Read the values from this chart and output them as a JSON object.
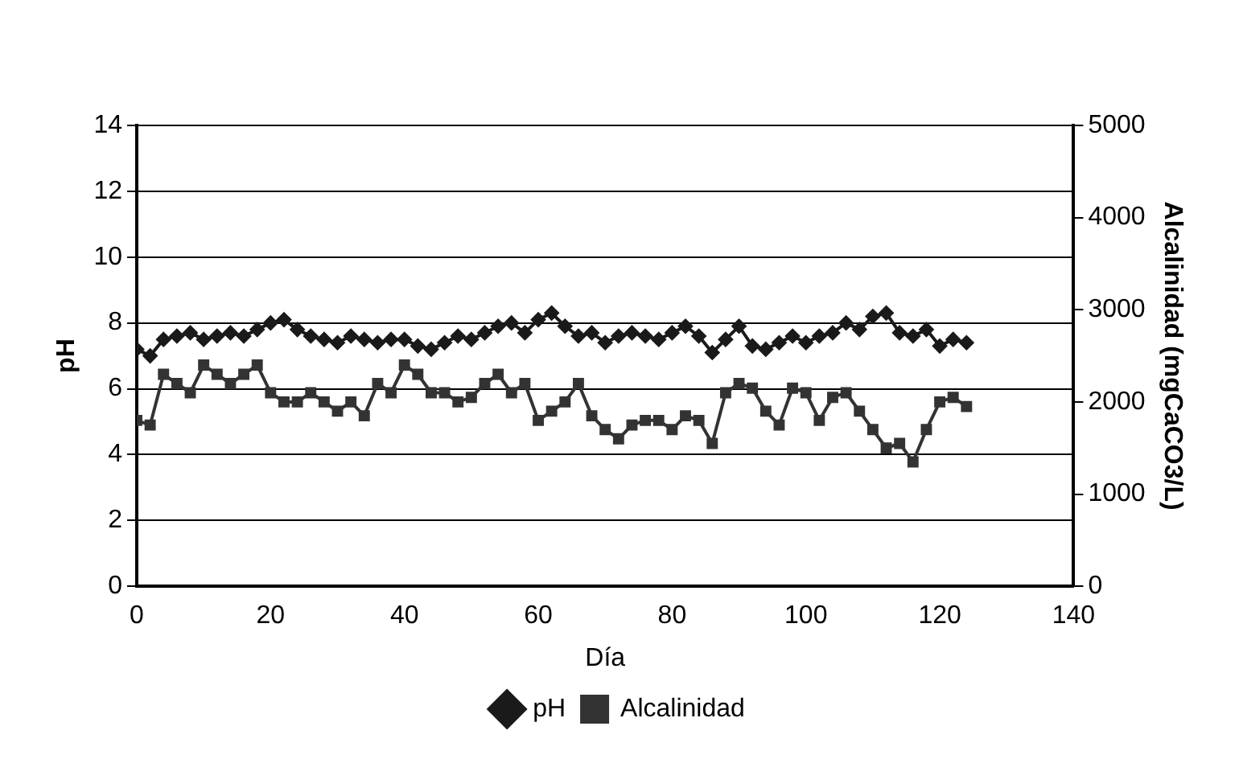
{
  "chart_data": {
    "type": "line",
    "xlabel": "Día",
    "ylabel": "pH",
    "y2label": "Alcalinidad (mgCaCO3/L)",
    "x": [
      0,
      2,
      4,
      6,
      8,
      10,
      12,
      14,
      16,
      18,
      20,
      22,
      24,
      26,
      28,
      30,
      32,
      34,
      36,
      38,
      40,
      42,
      44,
      46,
      48,
      50,
      52,
      54,
      56,
      58,
      60,
      62,
      64,
      66,
      68,
      70,
      72,
      74,
      76,
      78,
      80,
      82,
      84,
      86,
      88,
      90,
      92,
      94,
      96,
      98,
      100,
      102,
      104,
      106,
      108,
      110,
      112,
      114,
      116,
      118,
      120,
      122,
      124
    ],
    "series": [
      {
        "name": "pH",
        "color": "#1a1a1a",
        "marker": "diamond",
        "values": [
          7.2,
          7.0,
          7.5,
          7.6,
          7.7,
          7.5,
          7.6,
          7.7,
          7.6,
          7.8,
          8.0,
          8.1,
          7.8,
          7.6,
          7.5,
          7.4,
          7.6,
          7.5,
          7.4,
          7.5,
          7.5,
          7.3,
          7.2,
          7.4,
          7.6,
          7.5,
          7.7,
          7.9,
          8.0,
          7.7,
          8.1,
          8.3,
          7.9,
          7.6,
          7.7,
          7.4,
          7.6,
          7.7,
          7.6,
          7.5,
          7.7,
          7.9,
          7.6,
          7.1,
          7.5,
          7.9,
          7.3,
          7.2,
          7.4,
          7.6,
          7.4,
          7.6,
          7.7,
          8.0,
          7.8,
          8.2,
          8.3,
          7.7,
          7.6,
          7.8,
          7.3,
          7.5,
          7.4
        ]
      },
      {
        "name": "Alcalinidad",
        "color": "#333333",
        "marker": "square",
        "axis": "y2",
        "values": [
          1800,
          1750,
          2300,
          2200,
          2100,
          2400,
          2300,
          2200,
          2300,
          2400,
          2100,
          2000,
          2000,
          2100,
          2000,
          1900,
          2000,
          1850,
          2200,
          2100,
          2400,
          2300,
          2100,
          2100,
          2000,
          2050,
          2200,
          2300,
          2100,
          2200,
          1800,
          1900,
          2000,
          2200,
          1850,
          1700,
          1600,
          1750,
          1800,
          1800,
          1700,
          1850,
          1800,
          1550,
          2100,
          2200,
          2150,
          1900,
          1750,
          2150,
          2100,
          1800,
          2050,
          2100,
          1900,
          1700,
          1500,
          1550,
          1350,
          1700,
          2000,
          2050,
          1950
        ]
      }
    ],
    "xlim": [
      0,
      140
    ],
    "xticks": [
      0,
      20,
      40,
      60,
      80,
      100,
      120,
      140
    ],
    "ylim": [
      0,
      14
    ],
    "yticks": [
      0,
      2,
      4,
      6,
      8,
      10,
      12,
      14
    ],
    "y2lim": [
      0,
      5000
    ],
    "y2ticks": [
      0,
      1000,
      2000,
      3000,
      4000,
      5000
    ],
    "grid": "y",
    "legend": "bottom",
    "line_style": "solid"
  }
}
